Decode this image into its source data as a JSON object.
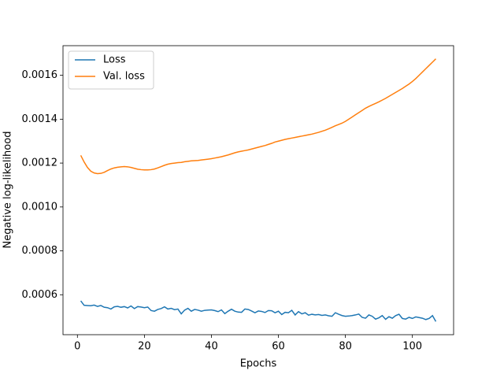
{
  "chart_data": {
    "type": "line",
    "xlabel": "Epochs",
    "ylabel": "Negative log-likelihood",
    "x": [
      1,
      2,
      3,
      4,
      5,
      6,
      7,
      8,
      9,
      10,
      11,
      12,
      13,
      14,
      15,
      16,
      17,
      18,
      19,
      20,
      21,
      22,
      23,
      24,
      25,
      26,
      27,
      28,
      29,
      30,
      31,
      32,
      33,
      34,
      35,
      36,
      37,
      38,
      39,
      40,
      41,
      42,
      43,
      44,
      45,
      46,
      47,
      48,
      49,
      50,
      51,
      52,
      53,
      54,
      55,
      56,
      57,
      58,
      59,
      60,
      61,
      62,
      63,
      64,
      65,
      66,
      67,
      68,
      69,
      70,
      71,
      72,
      73,
      74,
      75,
      76,
      77,
      78,
      79,
      80,
      81,
      82,
      83,
      84,
      85,
      86,
      87,
      88,
      89,
      90,
      91,
      92,
      93,
      94,
      95,
      96,
      97,
      98,
      99,
      100,
      101,
      102,
      103,
      104,
      105,
      106,
      107
    ],
    "series": [
      {
        "name": "Loss",
        "color": "#1f77b4",
        "values": [
          0.000572,
          0.000552,
          0.000551,
          0.00055,
          0.000553,
          0.000547,
          0.000551,
          0.000543,
          0.000541,
          0.000535,
          0.000545,
          0.000547,
          0.000543,
          0.000546,
          0.00054,
          0.000549,
          0.000537,
          0.000546,
          0.000544,
          0.000541,
          0.000544,
          0.000528,
          0.000525,
          0.000533,
          0.000537,
          0.000545,
          0.000535,
          0.000538,
          0.000532,
          0.000535,
          0.000513,
          0.00053,
          0.000538,
          0.000525,
          0.000533,
          0.00053,
          0.000525,
          0.000529,
          0.00053,
          0.000531,
          0.000528,
          0.000523,
          0.000531,
          0.000514,
          0.000525,
          0.000534,
          0.000525,
          0.000521,
          0.00052,
          0.000535,
          0.000533,
          0.000526,
          0.000518,
          0.000526,
          0.000524,
          0.000519,
          0.000528,
          0.000527,
          0.000518,
          0.000525,
          0.00051,
          0.00052,
          0.000518,
          0.000529,
          0.000508,
          0.000523,
          0.000513,
          0.000518,
          0.000507,
          0.000511,
          0.000508,
          0.00051,
          0.000506,
          0.000508,
          0.000504,
          0.000502,
          0.000518,
          0.000511,
          0.000505,
          0.000502,
          0.000503,
          0.000505,
          0.000508,
          0.000512,
          0.000497,
          0.000493,
          0.000508,
          0.000502,
          0.000489,
          0.000495,
          0.000505,
          0.000488,
          0.0005,
          0.000493,
          0.000505,
          0.000511,
          0.000492,
          0.000489,
          0.000497,
          0.000492,
          0.000499,
          0.000496,
          0.000493,
          0.000487,
          0.000492,
          0.000505,
          0.000478
        ]
      },
      {
        "name": "Val. loss",
        "color": "#ff7f0e",
        "values": [
          0.001235,
          0.001205,
          0.00118,
          0.001163,
          0.001155,
          0.001152,
          0.001153,
          0.001158,
          0.001166,
          0.001173,
          0.001178,
          0.001181,
          0.001183,
          0.001184,
          0.001183,
          0.00118,
          0.001176,
          0.001172,
          0.00117,
          0.001169,
          0.001169,
          0.00117,
          0.001173,
          0.001178,
          0.001184,
          0.00119,
          0.001195,
          0.001198,
          0.0012,
          0.001202,
          0.001203,
          0.001206,
          0.001208,
          0.00121,
          0.001211,
          0.001212,
          0.001214,
          0.001216,
          0.001218,
          0.00122,
          0.001223,
          0.001226,
          0.001229,
          0.001233,
          0.001237,
          0.001242,
          0.001247,
          0.001251,
          0.001254,
          0.001257,
          0.00126,
          0.001264,
          0.001268,
          0.001272,
          0.001276,
          0.00128,
          0.001285,
          0.00129,
          0.001296,
          0.0013,
          0.001304,
          0.001308,
          0.001311,
          0.001314,
          0.001317,
          0.00132,
          0.001323,
          0.001326,
          0.001329,
          0.001332,
          0.001336,
          0.00134,
          0.001345,
          0.00135,
          0.001356,
          0.001363,
          0.00137,
          0.001376,
          0.001382,
          0.00139,
          0.0014,
          0.00141,
          0.00142,
          0.00143,
          0.00144,
          0.00145,
          0.001458,
          0.001465,
          0.001472,
          0.001479,
          0.001487,
          0.001495,
          0.001504,
          0.001513,
          0.001522,
          0.001531,
          0.00154,
          0.00155,
          0.00156,
          0.001572,
          0.001585,
          0.0016,
          0.001615,
          0.00163,
          0.001645,
          0.00166,
          0.001675
        ]
      }
    ],
    "xlim": [
      -4.3,
      112.3
    ],
    "xticks": [
      0,
      20,
      40,
      60,
      80,
      100
    ],
    "ylim": [
      0.000418,
      0.001735
    ],
    "yticks": [
      0.0006,
      0.0008,
      {
        "value": 0.001,
        "label": "0.0010"
      },
      0.0012,
      0.0014,
      0.0016
    ],
    "legend": "upper left",
    "grid": false
  }
}
